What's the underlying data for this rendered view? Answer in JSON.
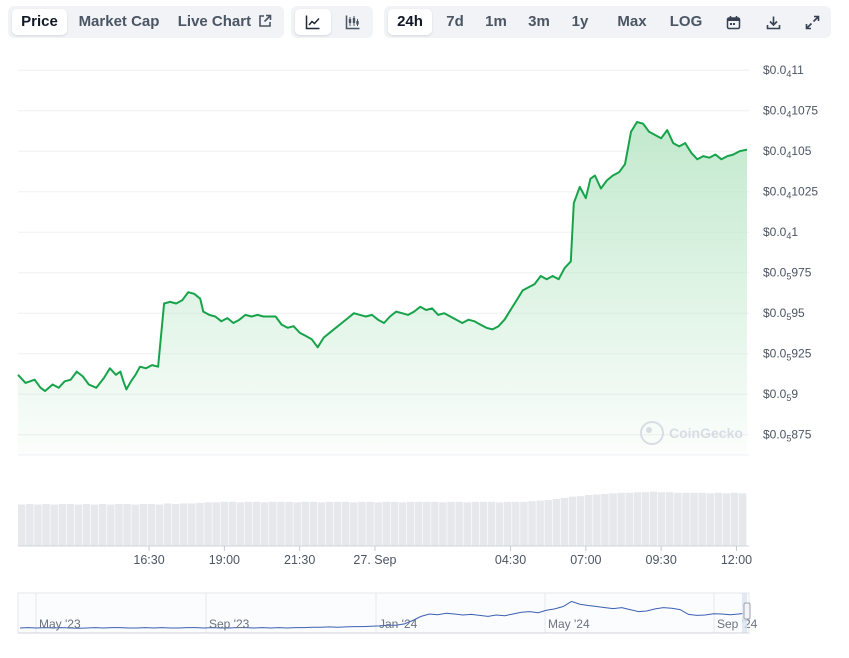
{
  "toolbar": {
    "metric_tabs": [
      {
        "label": "Price",
        "active": true
      },
      {
        "label": "Market Cap",
        "active": false
      },
      {
        "label": "Live Chart",
        "active": false
      }
    ],
    "chart_type_icons": [
      "line-chart-icon",
      "candlestick-chart-icon"
    ],
    "ranges": [
      {
        "label": "24h",
        "active": true
      },
      {
        "label": "7d",
        "active": false
      },
      {
        "label": "1m",
        "active": false
      },
      {
        "label": "3m",
        "active": false
      },
      {
        "label": "1y",
        "active": false
      },
      {
        "label": "Max",
        "active": false
      },
      {
        "label": "LOG",
        "active": false
      }
    ],
    "action_icons": [
      "calendar-icon",
      "download-icon",
      "fullscreen-icon"
    ]
  },
  "watermark": "CoinGecko",
  "colors": {
    "line": "#17a34a",
    "fill_top": "#bfe8cb",
    "volume": "#e6e8eb",
    "navigator_line": "#3b5fb4",
    "grid": "#eef0f3"
  },
  "chart_data": {
    "type": "area",
    "y_ticks": [
      {
        "prefix": "$0.0",
        "sub": "4",
        "rest": "11",
        "value": 1.1e-05
      },
      {
        "prefix": "$0.0",
        "sub": "4",
        "rest": "1075",
        "value": 1.075e-05
      },
      {
        "prefix": "$0.0",
        "sub": "4",
        "rest": "105",
        "value": 1.05e-05
      },
      {
        "prefix": "$0.0",
        "sub": "4",
        "rest": "1025",
        "value": 1.025e-05
      },
      {
        "prefix": "$0.0",
        "sub": "4",
        "rest": "1",
        "value": 1e-05
      },
      {
        "prefix": "$0.0",
        "sub": "5",
        "rest": "975",
        "value": 9.75e-06
      },
      {
        "prefix": "$0.0",
        "sub": "5",
        "rest": "95",
        "value": 9.5e-06
      },
      {
        "prefix": "$0.0",
        "sub": "5",
        "rest": "925",
        "value": 9.25e-06
      },
      {
        "prefix": "$0.0",
        "sub": "5",
        "rest": "9",
        "value": 9e-06
      },
      {
        "prefix": "$0.0",
        "sub": "5",
        "rest": "875",
        "value": 8.75e-06
      }
    ],
    "x_ticks": [
      "16:30",
      "19:00",
      "21:30",
      "27. Sep",
      "04:30",
      "07:00",
      "09:30",
      "12:00"
    ],
    "x_tick_hours": [
      16.5,
      19,
      21.5,
      24,
      28.5,
      31,
      33.5,
      36
    ],
    "x_range_hours": [
      12.15,
      36.35
    ],
    "ylim": [
      8.625e-06,
      1.11e-05
    ],
    "series": [
      {
        "points": [
          [
            12.15,
            9.12e-06
          ],
          [
            12.4,
            9.07e-06
          ],
          [
            12.7,
            9.09e-06
          ],
          [
            12.9,
            9.04e-06
          ],
          [
            13.05,
            9.02e-06
          ],
          [
            13.3,
            9.06e-06
          ],
          [
            13.5,
            9.04e-06
          ],
          [
            13.7,
            9.08e-06
          ],
          [
            13.9,
            9.09e-06
          ],
          [
            14.1,
            9.14e-06
          ],
          [
            14.3,
            9.11e-06
          ],
          [
            14.5,
            9.06e-06
          ],
          [
            14.75,
            9.04e-06
          ],
          [
            15.0,
            9.1e-06
          ],
          [
            15.2,
            9.16e-06
          ],
          [
            15.4,
            9.12e-06
          ],
          [
            15.55,
            9.14e-06
          ],
          [
            15.65,
            9.08e-06
          ],
          [
            15.75,
            9.03e-06
          ],
          [
            15.9,
            9.08e-06
          ],
          [
            16.05,
            9.12e-06
          ],
          [
            16.2,
            9.17e-06
          ],
          [
            16.4,
            9.16e-06
          ],
          [
            16.6,
            9.18e-06
          ],
          [
            16.8,
            9.17e-06
          ],
          [
            17.0,
            9.56e-06
          ],
          [
            17.2,
            9.57e-06
          ],
          [
            17.4,
            9.56e-06
          ],
          [
            17.6,
            9.58e-06
          ],
          [
            17.8,
            9.63e-06
          ],
          [
            18.0,
            9.62e-06
          ],
          [
            18.2,
            9.59e-06
          ],
          [
            18.3,
            9.51e-06
          ],
          [
            18.5,
            9.49e-06
          ],
          [
            18.7,
            9.48e-06
          ],
          [
            18.9,
            9.45e-06
          ],
          [
            19.1,
            9.47e-06
          ],
          [
            19.3,
            9.44e-06
          ],
          [
            19.5,
            9.46e-06
          ],
          [
            19.7,
            9.49e-06
          ],
          [
            19.9,
            9.48e-06
          ],
          [
            20.1,
            9.49e-06
          ],
          [
            20.3,
            9.48e-06
          ],
          [
            20.5,
            9.48e-06
          ],
          [
            20.7,
            9.48e-06
          ],
          [
            20.9,
            9.43e-06
          ],
          [
            21.1,
            9.41e-06
          ],
          [
            21.3,
            9.42e-06
          ],
          [
            21.5,
            9.38e-06
          ],
          [
            21.7,
            9.36e-06
          ],
          [
            21.9,
            9.34e-06
          ],
          [
            22.1,
            9.29e-06
          ],
          [
            22.3,
            9.35e-06
          ],
          [
            22.5,
            9.38e-06
          ],
          [
            22.7,
            9.41e-06
          ],
          [
            22.9,
            9.44e-06
          ],
          [
            23.1,
            9.47e-06
          ],
          [
            23.3,
            9.5e-06
          ],
          [
            23.5,
            9.49e-06
          ],
          [
            23.7,
            9.48e-06
          ],
          [
            23.9,
            9.49e-06
          ],
          [
            24.1,
            9.46e-06
          ],
          [
            24.3,
            9.44e-06
          ],
          [
            24.5,
            9.48e-06
          ],
          [
            24.7,
            9.51e-06
          ],
          [
            24.9,
            9.5e-06
          ],
          [
            25.1,
            9.49e-06
          ],
          [
            25.3,
            9.51e-06
          ],
          [
            25.5,
            9.54e-06
          ],
          [
            25.7,
            9.52e-06
          ],
          [
            25.9,
            9.53e-06
          ],
          [
            26.1,
            9.49e-06
          ],
          [
            26.3,
            9.5e-06
          ],
          [
            26.5,
            9.48e-06
          ],
          [
            26.7,
            9.46e-06
          ],
          [
            26.9,
            9.44e-06
          ],
          [
            27.1,
            9.46e-06
          ],
          [
            27.3,
            9.45e-06
          ],
          [
            27.5,
            9.43e-06
          ],
          [
            27.7,
            9.41e-06
          ],
          [
            27.9,
            9.4e-06
          ],
          [
            28.1,
            9.42e-06
          ],
          [
            28.3,
            9.46e-06
          ],
          [
            28.5,
            9.52e-06
          ],
          [
            28.7,
            9.58e-06
          ],
          [
            28.9,
            9.64e-06
          ],
          [
            29.1,
            9.66e-06
          ],
          [
            29.3,
            9.68e-06
          ],
          [
            29.5,
            9.73e-06
          ],
          [
            29.7,
            9.71e-06
          ],
          [
            29.9,
            9.73e-06
          ],
          [
            30.1,
            9.71e-06
          ],
          [
            30.3,
            9.78e-06
          ],
          [
            30.5,
            9.82e-06
          ],
          [
            30.6,
            1.018e-05
          ],
          [
            30.8,
            1.028e-05
          ],
          [
            31.0,
            1.021e-05
          ],
          [
            31.15,
            1.033e-05
          ],
          [
            31.3,
            1.035e-05
          ],
          [
            31.5,
            1.027e-05
          ],
          [
            31.7,
            1.032e-05
          ],
          [
            31.9,
            1.035e-05
          ],
          [
            32.1,
            1.037e-05
          ],
          [
            32.3,
            1.042e-05
          ],
          [
            32.5,
            1.062e-05
          ],
          [
            32.7,
            1.068e-05
          ],
          [
            32.9,
            1.067e-05
          ],
          [
            33.1,
            1.062e-05
          ],
          [
            33.3,
            1.06e-05
          ],
          [
            33.5,
            1.058e-05
          ],
          [
            33.7,
            1.063e-05
          ],
          [
            33.9,
            1.055e-05
          ],
          [
            34.1,
            1.053e-05
          ],
          [
            34.3,
            1.055e-05
          ],
          [
            34.5,
            1.049e-05
          ],
          [
            34.7,
            1.045e-05
          ],
          [
            34.9,
            1.047e-05
          ],
          [
            35.1,
            1.046e-05
          ],
          [
            35.3,
            1.048e-05
          ],
          [
            35.5,
            1.045e-05
          ],
          [
            35.7,
            1.047e-05
          ],
          [
            35.9,
            1.048e-05
          ],
          [
            36.1,
            1.05e-05
          ],
          [
            36.35,
            1.051e-05
          ]
        ]
      }
    ],
    "volume": {
      "bars": [
        0.74,
        0.75,
        0.74,
        0.75,
        0.74,
        0.75,
        0.75,
        0.74,
        0.75,
        0.74,
        0.75,
        0.74,
        0.75,
        0.75,
        0.74,
        0.75,
        0.75,
        0.74,
        0.76,
        0.75,
        0.76,
        0.76,
        0.77,
        0.78,
        0.78,
        0.79,
        0.79,
        0.78,
        0.79,
        0.79,
        0.78,
        0.79,
        0.79,
        0.79,
        0.78,
        0.79,
        0.79,
        0.78,
        0.79,
        0.79,
        0.79,
        0.78,
        0.79,
        0.79,
        0.78,
        0.79,
        0.79,
        0.78,
        0.79,
        0.79,
        0.79,
        0.79,
        0.78,
        0.79,
        0.79,
        0.78,
        0.79,
        0.79,
        0.79,
        0.78,
        0.79,
        0.79,
        0.79,
        0.8,
        0.81,
        0.82,
        0.84,
        0.86,
        0.88,
        0.89,
        0.91,
        0.92,
        0.93,
        0.94,
        0.95,
        0.95,
        0.96,
        0.96,
        0.97,
        0.96,
        0.96,
        0.95,
        0.95,
        0.95,
        0.95,
        0.94,
        0.95,
        0.94,
        0.95,
        0.94
      ]
    }
  },
  "navigator": {
    "labels": [
      "May '23",
      "Sep '23",
      "Jan '24",
      "May '24",
      "Sep '24"
    ],
    "series": [
      0.06,
      0.07,
      0.06,
      0.07,
      0.06,
      0.07,
      0.06,
      0.05,
      0.06,
      0.07,
      0.06,
      0.07,
      0.07,
      0.06,
      0.06,
      0.07,
      0.06,
      0.07,
      0.06,
      0.06,
      0.07,
      0.07,
      0.06,
      0.07,
      0.06,
      0.06,
      0.07,
      0.07,
      0.06,
      0.07,
      0.06,
      0.07,
      0.06,
      0.07,
      0.07,
      0.08,
      0.08,
      0.09,
      0.08,
      0.09,
      0.1,
      0.1,
      0.11,
      0.12,
      0.14,
      0.14,
      0.18,
      0.28,
      0.4,
      0.47,
      0.45,
      0.49,
      0.47,
      0.44,
      0.46,
      0.43,
      0.4,
      0.44,
      0.42,
      0.47,
      0.52,
      0.54,
      0.51,
      0.58,
      0.62,
      0.69,
      0.84,
      0.76,
      0.72,
      0.69,
      0.66,
      0.63,
      0.66,
      0.6,
      0.54,
      0.56,
      0.62,
      0.66,
      0.64,
      0.6,
      0.46,
      0.43,
      0.44,
      0.48,
      0.47,
      0.45,
      0.47,
      0.5
    ]
  }
}
